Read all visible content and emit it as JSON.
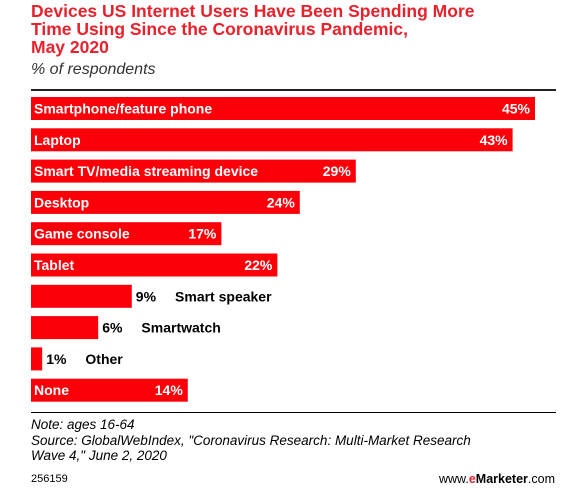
{
  "header": {
    "title_line1": "Devices US Internet Users Have Been Spending More",
    "title_line2": "Time Using Since the Coronavirus Pandemic,",
    "title_line3": "May 2020",
    "subtitle": "% of respondents"
  },
  "chart_data": {
    "type": "bar",
    "orientation": "horizontal",
    "title": "Devices US Internet Users Have Been Spending More Time Using Since the Coronavirus Pandemic, May 2020",
    "subtitle": "% of respondents",
    "categories": [
      "Smartphone/feature phone",
      "Laptop",
      "Smart TV/media streaming device",
      "Desktop",
      "Game console",
      "Tablet",
      "Smart speaker",
      "Smartwatch",
      "Other",
      "None"
    ],
    "values": [
      45,
      43,
      29,
      24,
      17,
      22,
      9,
      6,
      1,
      14
    ],
    "value_labels": [
      "45%",
      "43%",
      "29%",
      "24%",
      "17%",
      "22%",
      "9%",
      "6%",
      "1%",
      "14%"
    ],
    "xlim": [
      0,
      45
    ],
    "bar_color": "#fb0009",
    "grid": false,
    "legend": "none"
  },
  "footer": {
    "note": "Note: ages 16-64",
    "source_line1": "Source: GlobalWebIndex, \"Coronavirus Research: Multi-Market Research",
    "source_line2": "Wave 4,\" June 2, 2020",
    "chart_id": "256159",
    "brand_prefix": "www.",
    "brand_e": "e",
    "brand_name": "Marketer",
    "brand_suffix": ".com"
  }
}
